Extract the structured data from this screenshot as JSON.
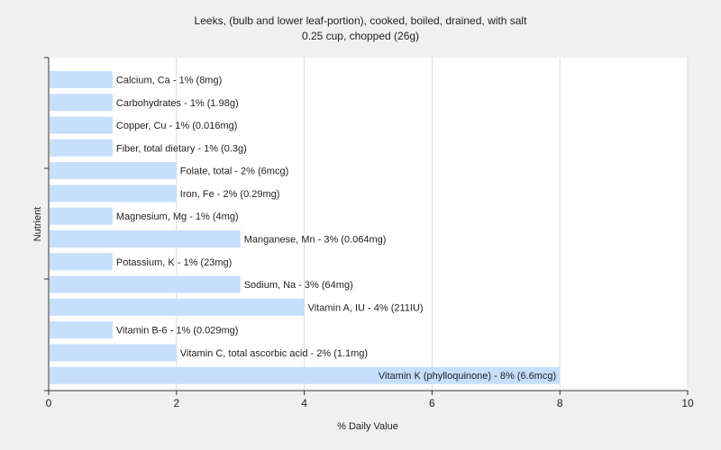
{
  "chart_data": {
    "type": "bar",
    "orientation": "horizontal",
    "title": "Leeks, (bulb and lower leaf-portion), cooked, boiled, drained, with salt",
    "subtitle": "0.25 cup, chopped (26g)",
    "xlabel": "% Daily Value",
    "ylabel": "Nutrient",
    "xlim": [
      0,
      10
    ],
    "xticks": [
      "0",
      "2",
      "4",
      "6",
      "8",
      "10"
    ],
    "grid": "vertical",
    "bar_color": "#c6dffd",
    "categories": [
      "Calcium, Ca",
      "Carbohydrates",
      "Copper, Cu",
      "Fiber, total dietary",
      "Folate, total",
      "Iron, Fe",
      "Magnesium, Mg",
      "Manganese, Mn",
      "Potassium, K",
      "Sodium, Na",
      "Vitamin A, IU",
      "Vitamin B-6",
      "Vitamin C, total ascorbic acid",
      "Vitamin K (phylloquinone)"
    ],
    "values": [
      1,
      1,
      1,
      1,
      2,
      2,
      1,
      3,
      1,
      3,
      4,
      1,
      2,
      8
    ],
    "labels": [
      "Calcium, Ca - 1% (8mg)",
      "Carbohydrates - 1% (1.98g)",
      "Copper, Cu - 1% (0.016mg)",
      "Fiber, total dietary - 1% (0.3g)",
      "Folate, total - 2% (6mcg)",
      "Iron, Fe - 2% (0.29mg)",
      "Magnesium, Mg - 1% (4mg)",
      "Manganese, Mn - 3% (0.064mg)",
      "Potassium, K - 1% (23mg)",
      "Sodium, Na - 3% (64mg)",
      "Vitamin A, IU - 4% (211IU)",
      "Vitamin B-6 - 1% (0.029mg)",
      "Vitamin C, total ascorbic acid - 2% (1.1mg)",
      "Vitamin K (phylloquinone) - 8% (6.6mcg)"
    ]
  }
}
